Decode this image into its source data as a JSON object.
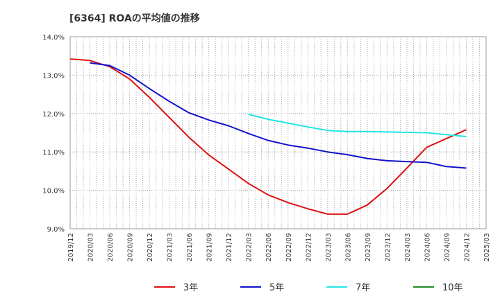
{
  "chart_data": {
    "type": "line",
    "title": "[6364]  ROAの平均値の推移",
    "xlabel": "",
    "ylabel": "",
    "ylim": [
      9.0,
      14.0
    ],
    "y_ticks": [
      "9.0%",
      "10.0%",
      "11.0%",
      "12.0%",
      "13.0%",
      "14.0%"
    ],
    "x_ticks": [
      "2019/12",
      "2020/03",
      "2020/06",
      "2020/09",
      "2020/12",
      "2021/03",
      "2021/06",
      "2021/09",
      "2021/12",
      "2022/03",
      "2022/06",
      "2022/09",
      "2022/12",
      "2023/03",
      "2023/06",
      "2023/09",
      "2023/12",
      "2024/03",
      "2024/06",
      "2024/09",
      "2024/12",
      "2025/03"
    ],
    "grid": true,
    "legend_position": "bottom",
    "series": [
      {
        "name": "3年",
        "color": "#dd1111",
        "x": [
          "2019/12",
          "2020/03",
          "2020/06",
          "2020/09",
          "2020/12",
          "2021/03",
          "2021/06",
          "2021/09",
          "2021/12",
          "2022/03",
          "2022/06",
          "2022/09",
          "2022/12",
          "2023/03",
          "2023/06",
          "2023/09",
          "2023/12",
          "2024/03",
          "2024/06",
          "2024/09",
          "2024/12"
        ],
        "values": [
          13.42,
          13.38,
          13.22,
          12.9,
          12.42,
          11.9,
          11.38,
          10.92,
          10.55,
          10.18,
          9.88,
          9.68,
          9.52,
          9.38,
          9.38,
          9.62,
          10.05,
          10.58,
          11.12,
          11.35,
          11.58
        ]
      },
      {
        "name": "5年",
        "color": "#1111cc",
        "x": [
          "2020/03",
          "2020/06",
          "2020/09",
          "2020/12",
          "2021/03",
          "2021/06",
          "2021/09",
          "2021/12",
          "2022/03",
          "2022/06",
          "2022/09",
          "2022/12",
          "2023/03",
          "2023/06",
          "2023/09",
          "2023/12",
          "2024/03",
          "2024/06",
          "2024/09",
          "2024/12"
        ],
        "values": [
          13.32,
          13.25,
          13.0,
          12.65,
          12.32,
          12.02,
          11.83,
          11.68,
          11.48,
          11.3,
          11.18,
          11.1,
          11.0,
          10.93,
          10.83,
          10.77,
          10.75,
          10.73,
          10.62,
          10.58
        ]
      },
      {
        "name": "7年",
        "color": "#22e5e5",
        "x": [
          "2022/03",
          "2022/06",
          "2022/09",
          "2022/12",
          "2023/03",
          "2023/06",
          "2023/09",
          "2023/12",
          "2024/03",
          "2024/06",
          "2024/09",
          "2024/12"
        ],
        "values": [
          11.98,
          11.85,
          11.75,
          11.65,
          11.56,
          11.53,
          11.53,
          11.52,
          11.51,
          11.5,
          11.45,
          11.4
        ]
      },
      {
        "name": "10年",
        "color": "#228822",
        "x": [],
        "values": []
      }
    ]
  }
}
